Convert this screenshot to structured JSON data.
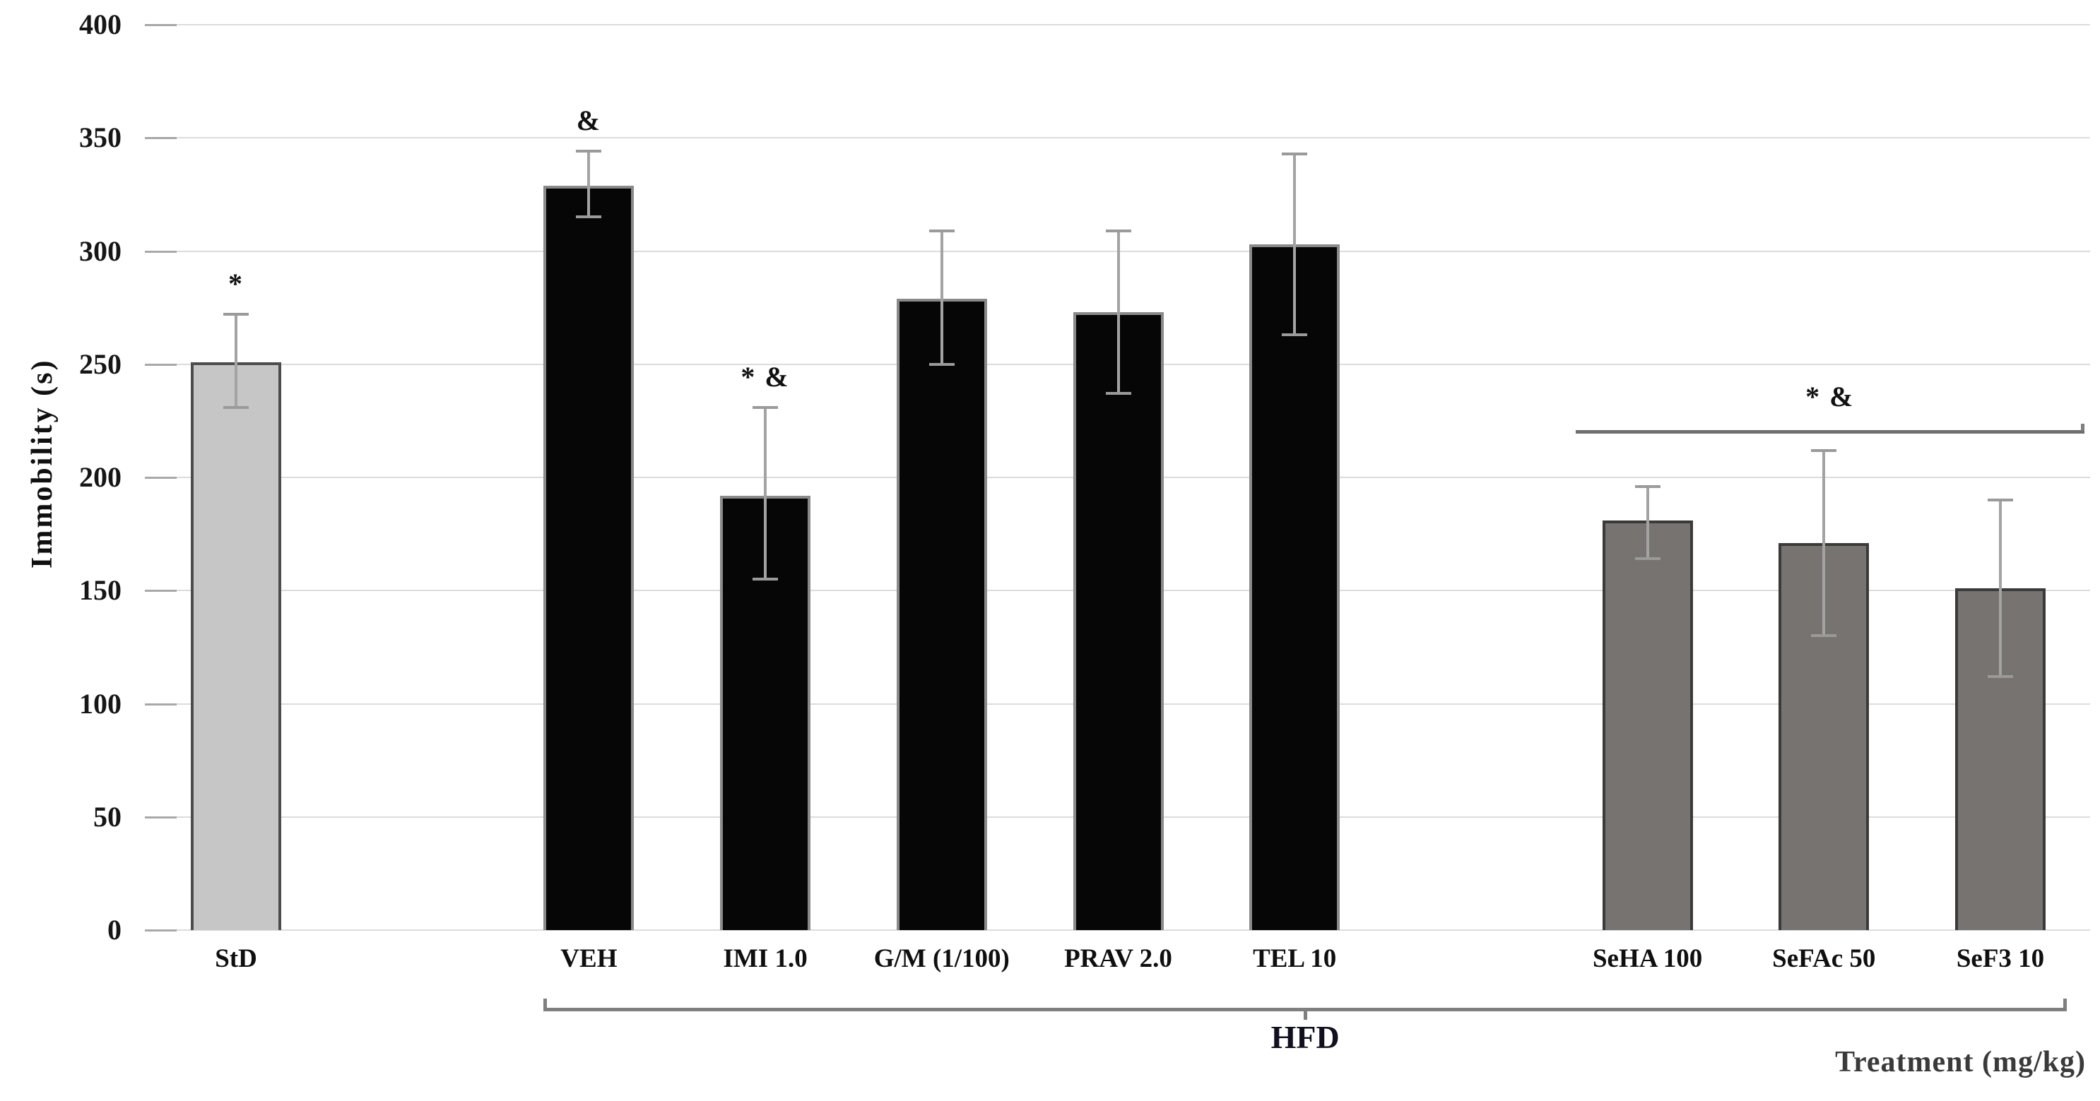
{
  "chart_data": {
    "type": "bar",
    "title": "",
    "xlabel": "Treatment (mg/kg)",
    "ylabel": "Immobility  (s)",
    "ylim": [
      0,
      400
    ],
    "yticks": [
      0,
      50,
      100,
      150,
      200,
      250,
      300,
      350,
      400
    ],
    "grid": true,
    "legend": "none",
    "categories": [
      "StD",
      "VEH",
      "IMI 1.0",
      "G/M (1/100)",
      "PRAV 2.0",
      "TEL 10",
      "SeHA 100",
      "SeFAc 50",
      "SeF3 10"
    ],
    "series": [
      {
        "name": "Immobility (s)",
        "values": [
          251,
          329,
          192,
          279,
          273,
          303,
          181,
          171,
          151
        ],
        "err_low": [
          231,
          315,
          155,
          250,
          237,
          263,
          164,
          130,
          112
        ],
        "err_high": [
          272,
          344,
          231,
          309,
          309,
          343,
          196,
          212,
          190
        ]
      }
    ],
    "bar_groups": [
      "std",
      "hfd",
      "hfd",
      "hfd",
      "hfd",
      "hfd",
      "se",
      "se",
      "se"
    ],
    "group_styles": {
      "std": {
        "fill": "#c6c6c6",
        "border": "#4d4d4d"
      },
      "hfd": {
        "fill": "#060606",
        "border": "#8a8a8a"
      },
      "se": {
        "fill": "#767370",
        "border": "#3a3a3a"
      }
    },
    "bar_annotations": [
      {
        "bar": 0,
        "text": "*"
      },
      {
        "bar": 1,
        "text": "&"
      },
      {
        "bar": 2,
        "text": "* &"
      }
    ],
    "significance_line": {
      "text": "* &",
      "value": 221,
      "from_bar": 6,
      "to_bar": 8
    },
    "group_bracket": {
      "label": "HFD",
      "from_bar": 1,
      "to_bar": 8
    }
  }
}
